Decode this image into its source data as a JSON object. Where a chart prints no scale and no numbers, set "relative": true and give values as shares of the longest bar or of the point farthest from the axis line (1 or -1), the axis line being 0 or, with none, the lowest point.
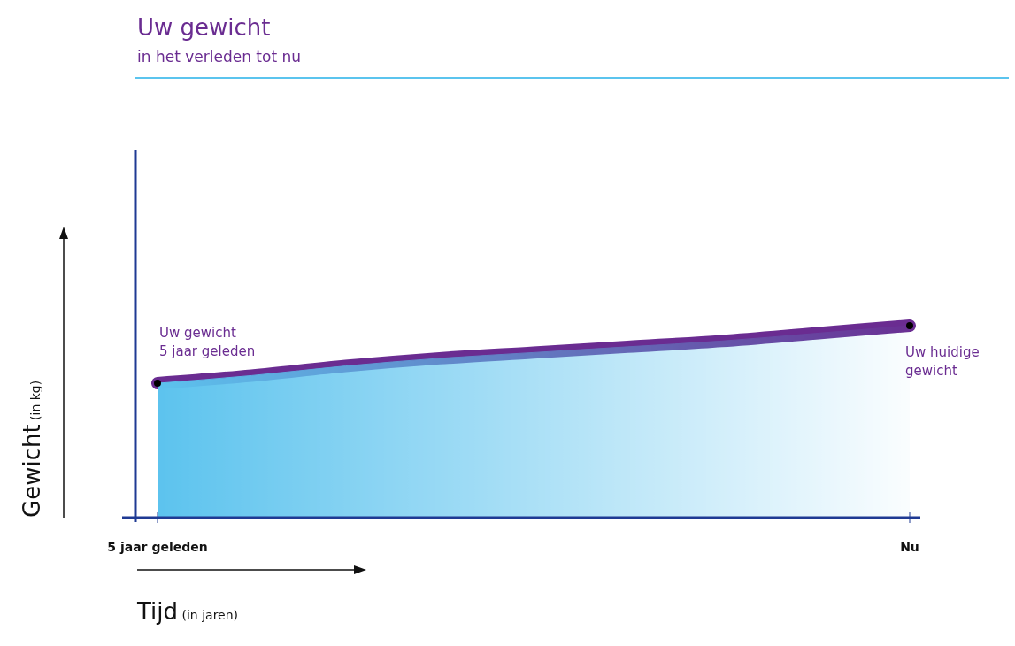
{
  "chart_data": {
    "type": "area",
    "title": "Uw gewicht",
    "subtitle": "in het verleden tot nu",
    "xlabel": "Tijd (in jaren)",
    "ylabel": "Gewicht (in kg)",
    "relative": true,
    "categories": [
      "5 jaar geleden",
      null,
      null,
      null,
      null,
      null,
      null,
      null,
      "Nu"
    ],
    "series": [
      {
        "color": "#5cc3ee",
        "values": [
          0.7,
          0.74,
          0.79,
          0.83,
          0.86,
          0.89,
          0.92,
          0.96,
          1
        ]
      },
      {
        "type": "line",
        "color": "#6a2c91",
        "values": [
          0.7,
          0.74,
          0.79,
          0.83,
          0.86,
          0.89,
          0.92,
          0.96,
          1
        ]
      },
      {
        "type": "scatter",
        "color": "#000000",
        "marker": "circle",
        "values": [
          0.7,
          null,
          null,
          null,
          null,
          null,
          null,
          null,
          1
        ]
      }
    ],
    "annotations": [
      {
        "text": "Uw gewicht\n5 jaar geleden",
        "x": "5 jaar geleden",
        "y": 0.7
      },
      {
        "text": "Uw huidige\ngewicht",
        "x": "Nu",
        "y": 1
      }
    ]
  }
}
